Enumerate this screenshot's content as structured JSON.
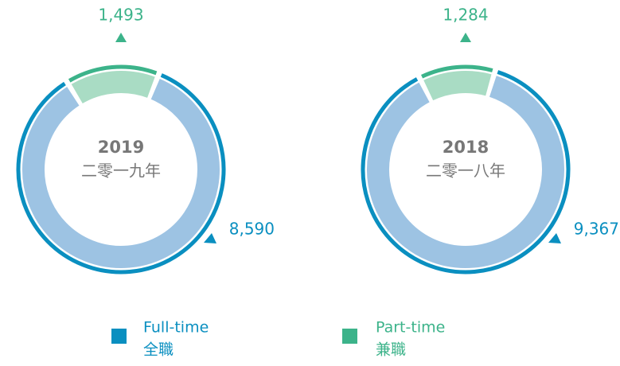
{
  "chart_data": [
    {
      "type": "donut",
      "title": "2019",
      "subtitle": "二零一九年",
      "categories": [
        "Full-time",
        "Part-time"
      ],
      "values": [
        8590,
        1493
      ],
      "value_labels": [
        "8,590",
        "1,493"
      ],
      "colors": [
        "#0a8fc0",
        "#3cb38a"
      ],
      "light_colors": [
        "#9dc3e3",
        "#a9dcc4"
      ]
    },
    {
      "type": "donut",
      "title": "2018",
      "subtitle": "二零一八年",
      "categories": [
        "Full-time",
        "Part-time"
      ],
      "values": [
        9367,
        1284
      ],
      "value_labels": [
        "9,367",
        "1,284"
      ],
      "colors": [
        "#0a8fc0",
        "#3cb38a"
      ],
      "light_colors": [
        "#9dc3e3",
        "#a9dcc4"
      ]
    }
  ],
  "legend": {
    "items": [
      {
        "label": "Full-time",
        "label_zh": "全職",
        "color": "#0a8fc0"
      },
      {
        "label": "Part-time",
        "label_zh": "兼職",
        "color": "#3cb38a"
      }
    ]
  }
}
